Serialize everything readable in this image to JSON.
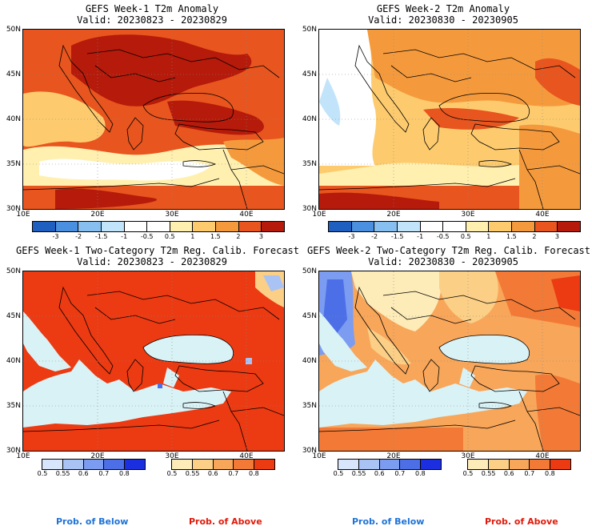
{
  "panels": {
    "p1": {
      "title_line1": "GEFS Week-1 T2m Anomaly",
      "title_line2": "Valid: 20230823 - 20230829"
    },
    "p2": {
      "title_line1": "GEFS Week-2 T2m Anomaly",
      "title_line2": "Valid: 20230830 - 20230905"
    },
    "p3": {
      "title_line1": "GEFS Week-1 Two-Category T2m Reg. Calib. Forecast",
      "title_line2": "Valid: 20230823 - 20230829"
    },
    "p4": {
      "title_line1": "GEFS Week-2 Two-Category T2m Reg. Calib. Forecast",
      "title_line2": "Valid: 20230830 - 20230905"
    }
  },
  "axes": {
    "lat_labels": [
      "50N",
      "45N",
      "40N",
      "35N",
      "30N"
    ],
    "lon_labels": [
      "10E",
      "20E",
      "30E",
      "40E"
    ]
  },
  "anomaly_colorbar": {
    "ticks": [
      "-3",
      "-2",
      "-1.5",
      "-1",
      "-0.5",
      "0.5",
      "1",
      "1.5",
      "2",
      "3"
    ],
    "colors": [
      "#1f5fbf",
      "#4a8fe0",
      "#87bff0",
      "#c2e4fa",
      "#ffffff",
      "#ffffff",
      "#fff0b0",
      "#fdcb6e",
      "#f59a3c",
      "#e8551e",
      "#b51a0a"
    ]
  },
  "prob_below_colorbar": {
    "ticks": [
      "0.5",
      "0.55",
      "0.6",
      "0.7",
      "0.8"
    ],
    "colors": [
      "#d7e6fb",
      "#a9c3f5",
      "#7b9cf0",
      "#4c6fe8",
      "#1b2fe0"
    ]
  },
  "prob_above_colorbar": {
    "ticks": [
      "0.5",
      "0.55",
      "0.6",
      "0.7",
      "0.8"
    ],
    "colors": [
      "#fdebb8",
      "#fbcf86",
      "#f8a65a",
      "#f27a36",
      "#ec3a12"
    ]
  },
  "footer": {
    "below_label": "Prob. of Below",
    "above_label": "Prob. of Above",
    "below_color": "#1e72d6",
    "above_color": "#e01a0a"
  }
}
